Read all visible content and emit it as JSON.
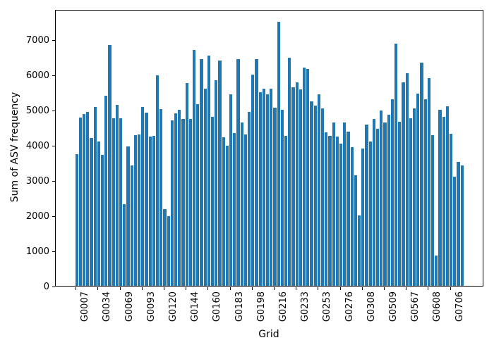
{
  "figure": {
    "background": "#ffffff"
  },
  "chart_data": {
    "type": "bar",
    "title": "",
    "xlabel": "Grid",
    "ylabel": "Sum of ASV frequency",
    "bar_color": "#1f77b4",
    "ylim": [
      0,
      7860
    ],
    "yticks": [
      0,
      1000,
      2000,
      3000,
      4000,
      5000,
      6000,
      7000
    ],
    "grid": false,
    "legend": false,
    "x_tick_labels": [
      "G0007",
      "G0034",
      "G0069",
      "G0093",
      "G0120",
      "G0144",
      "G0160",
      "G0183",
      "G0198",
      "G0216",
      "G0233",
      "G0253",
      "G0276",
      "G0308",
      "G0509",
      "G0567",
      "G0608",
      "G0706"
    ],
    "tick_every": 6,
    "n_bars": 106,
    "values": [
      3750,
      4790,
      4890,
      4950,
      4210,
      5080,
      4100,
      3720,
      5400,
      6840,
      4760,
      5150,
      4760,
      2330,
      3970,
      3420,
      4280,
      4300,
      5080,
      4920,
      4240,
      4260,
      5990,
      5030,
      2180,
      1980,
      4700,
      4900,
      5000,
      4750,
      5760,
      4750,
      6700,
      5170,
      6450,
      5600,
      6550,
      4800,
      5850,
      6400,
      4230,
      3990,
      5450,
      4340,
      6440,
      4650,
      4310,
      4940,
      6000,
      6440,
      5500,
      5610,
      5450,
      5610,
      5060,
      7500,
      5000,
      4270,
      6480,
      5650,
      5780,
      5590,
      6210,
      6170,
      5250,
      5120,
      5450,
      5040,
      4370,
      4270,
      4640,
      4240,
      4040,
      4650,
      4380,
      3950,
      3150,
      2010,
      3900,
      4590,
      4110,
      4740,
      4470,
      4990,
      4640,
      4870,
      5310,
      6890,
      4670,
      5790,
      6050,
      4770,
      5050,
      5470,
      6340,
      5300,
      5900,
      4280,
      860,
      5000,
      4800,
      5100,
      4320,
      3100,
      3530,
      3430
    ]
  }
}
